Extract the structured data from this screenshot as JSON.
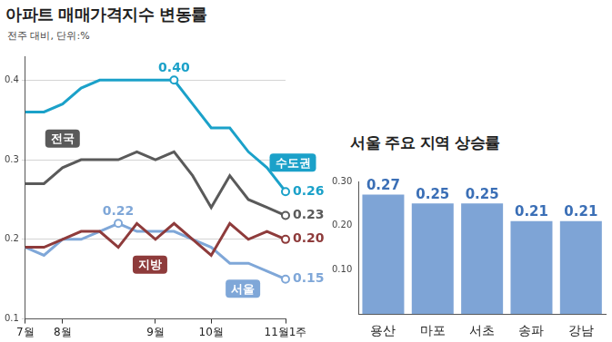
{
  "chart_data": [
    {
      "type": "line",
      "title": "아파트 매매가격지수 변동률",
      "subtitle": "전주 대비, 단위:%",
      "categories": [
        "7월",
        null,
        "8월",
        null,
        null,
        null,
        null,
        "9월",
        null,
        null,
        "10월",
        null,
        null,
        null,
        "11월1주"
      ],
      "series": [
        {
          "name": "수도권",
          "color": "#1ba1c9",
          "values": [
            0.36,
            0.36,
            0.37,
            0.39,
            0.4,
            0.4,
            0.4,
            0.4,
            0.4,
            0.37,
            0.34,
            0.34,
            0.31,
            0.29,
            0.26
          ],
          "value_labels": [
            null,
            null,
            null,
            null,
            null,
            null,
            null,
            null,
            "0.40",
            null,
            null,
            null,
            null,
            null,
            "0.26"
          ]
        },
        {
          "name": "전국",
          "color": "#5a5a5a",
          "values": [
            0.27,
            0.27,
            0.29,
            0.3,
            0.3,
            0.3,
            0.31,
            0.3,
            0.31,
            0.28,
            0.24,
            0.28,
            0.25,
            0.24,
            0.23
          ],
          "value_labels": [
            null,
            null,
            null,
            null,
            null,
            null,
            null,
            null,
            null,
            null,
            null,
            null,
            null,
            null,
            "0.23"
          ]
        },
        {
          "name": "지방",
          "color": "#8e3b3b",
          "values": [
            0.19,
            0.19,
            0.2,
            0.21,
            0.21,
            0.19,
            0.22,
            0.2,
            0.22,
            0.2,
            0.18,
            0.22,
            0.2,
            0.21,
            0.2
          ],
          "value_labels": [
            null,
            null,
            null,
            null,
            null,
            null,
            null,
            null,
            null,
            null,
            null,
            null,
            null,
            null,
            "0.20"
          ]
        },
        {
          "name": "서울",
          "color": "#7fa7d8",
          "values": [
            0.19,
            0.18,
            0.2,
            0.2,
            0.21,
            0.22,
            0.21,
            0.21,
            0.21,
            0.2,
            0.19,
            0.17,
            0.17,
            0.16,
            0.15
          ],
          "value_labels": [
            null,
            null,
            null,
            null,
            null,
            "0.22",
            null,
            null,
            null,
            null,
            null,
            null,
            null,
            null,
            "0.15"
          ]
        }
      ],
      "ylim": [
        0.1,
        0.43
      ],
      "yticks": [
        0.1,
        0.2,
        0.3,
        0.4
      ],
      "grid": true,
      "data_labels": true
    },
    {
      "type": "bar",
      "title": "서울 주요 지역 상승률",
      "categories": [
        "용산",
        "마포",
        "서초",
        "송파",
        "강남"
      ],
      "values": [
        0.27,
        0.25,
        0.25,
        0.21,
        0.21
      ],
      "color": "#7ea4d6",
      "ylim": [
        0,
        0.3
      ],
      "yticks": [
        {
          "value": 0.1,
          "label": "0.10"
        },
        {
          "value": 0.2,
          "label": "0.20"
        },
        {
          "value": 0.3,
          "label": "0.30"
        }
      ],
      "grid": false,
      "data_labels": true
    }
  ]
}
